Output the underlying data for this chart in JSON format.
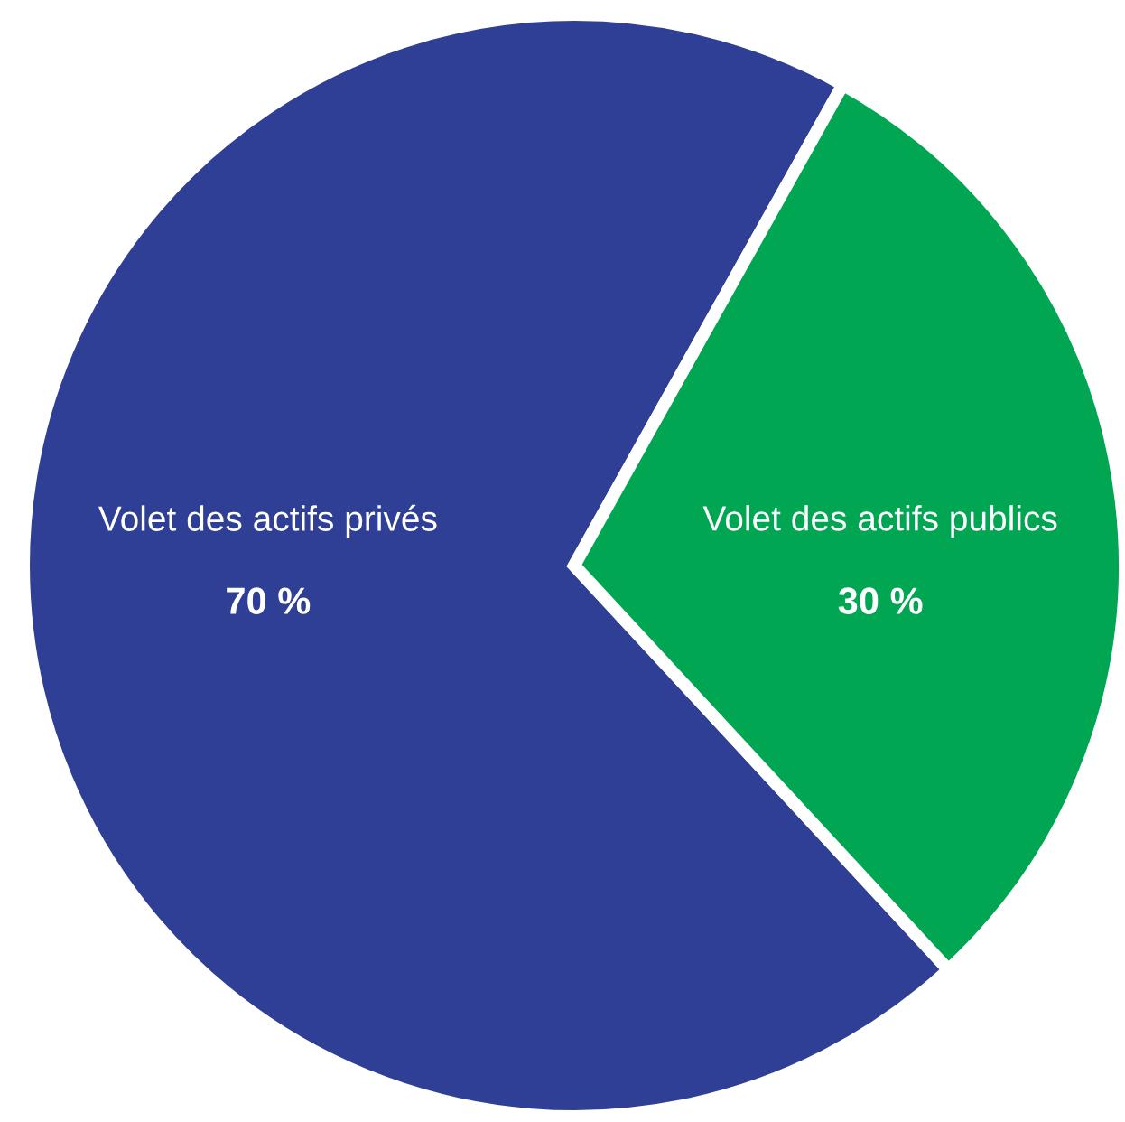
{
  "chart_data": {
    "type": "pie",
    "categories": [
      "Volet des actifs privés",
      "Volet des actifs publics"
    ],
    "values": [
      70,
      30
    ],
    "value_labels": [
      "70 %",
      "30 %"
    ],
    "colors": [
      "#2e3f95",
      "#00a651"
    ]
  }
}
